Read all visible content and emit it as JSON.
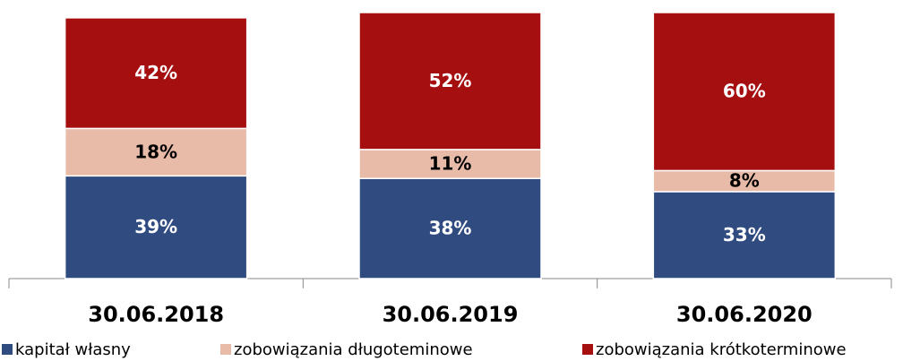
{
  "chart_data": {
    "type": "stacked_bar",
    "categories": [
      "30.06.2018",
      "30.06.2019",
      "30.06.2020"
    ],
    "series": [
      {
        "name": "kapitał własny",
        "color": "#2f4b80",
        "values": [
          39,
          38,
          33
        ],
        "value_labels": [
          "39%",
          "38%",
          "33%"
        ]
      },
      {
        "name": "zobowiązania długoteminowe",
        "color": "#e8bba9",
        "values": [
          18,
          11,
          8
        ],
        "value_labels": [
          "18%",
          "11%",
          "8%"
        ]
      },
      {
        "name": "zobowiązania krótkoterminowe",
        "color": "#a50f0f",
        "values": [
          42,
          52,
          60
        ],
        "value_labels": [
          "42%",
          "52%",
          "60%"
        ]
      }
    ]
  }
}
